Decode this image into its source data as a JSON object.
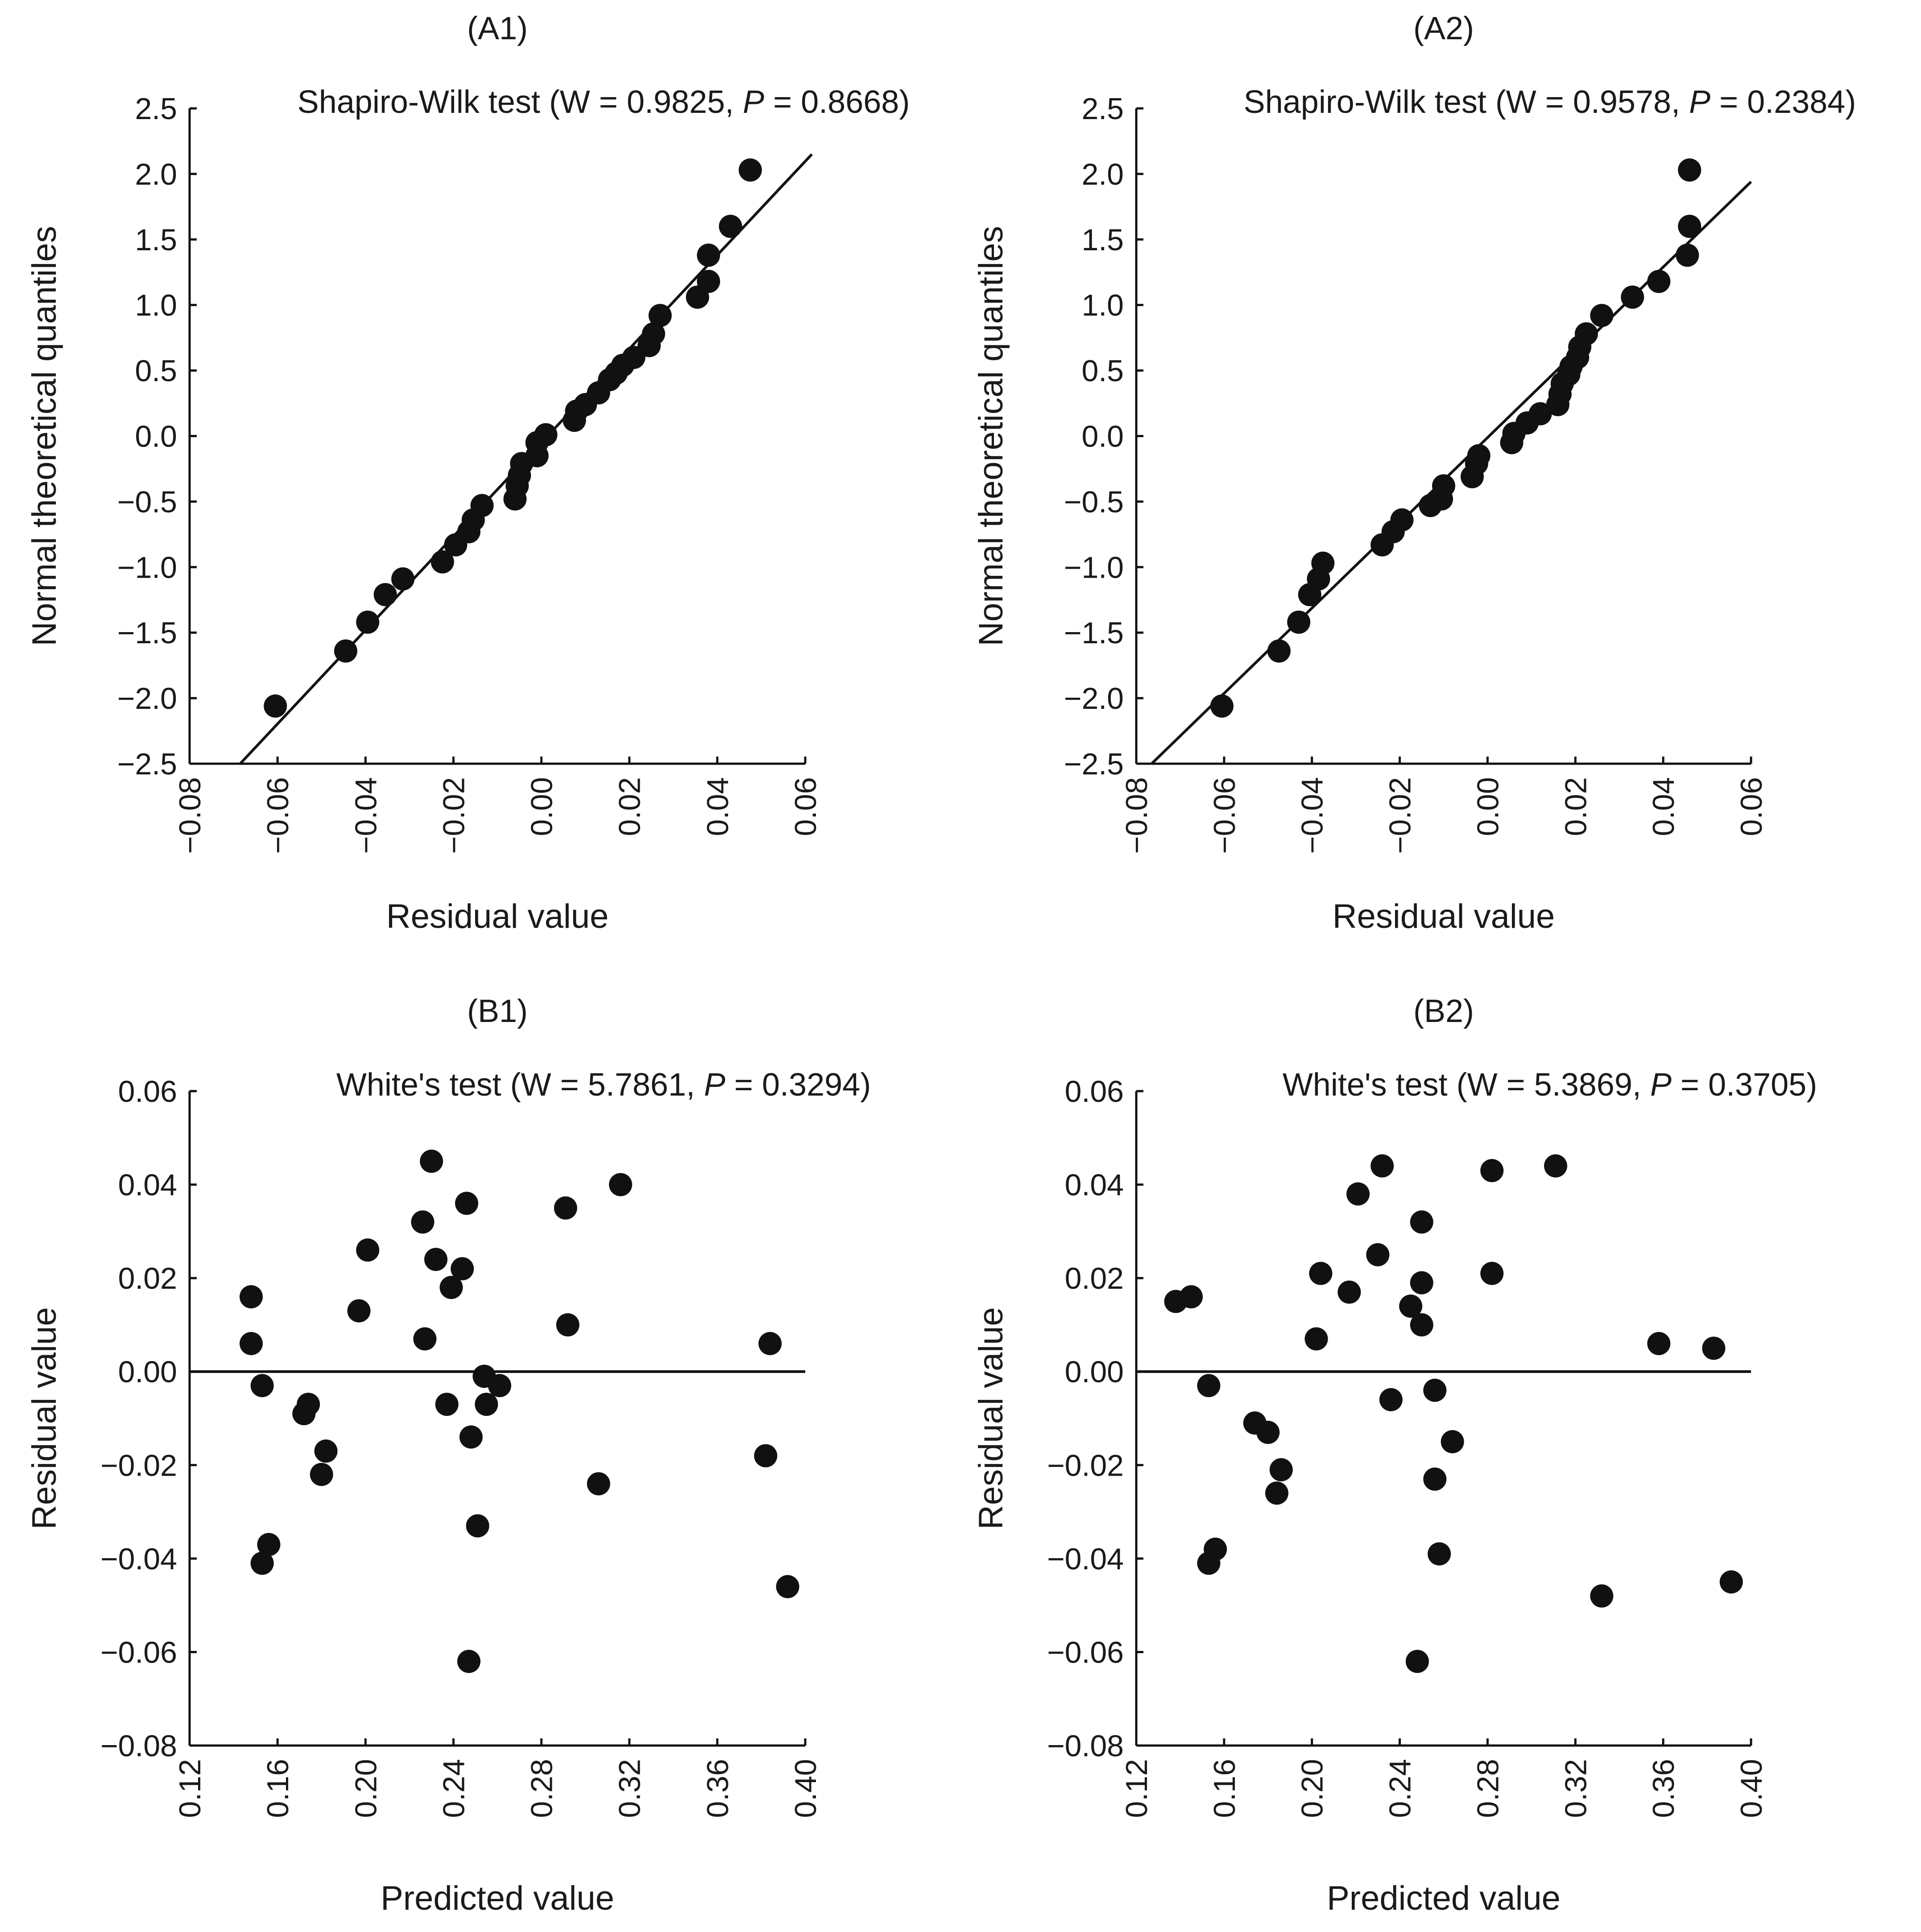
{
  "figure": {
    "background": "#ffffff",
    "ink": "#111111"
  },
  "chart_data": [
    {
      "id": "A1",
      "type": "scatter",
      "panel_label": "(A1)",
      "annotation": {
        "prefix": "Shapiro-Wilk test (W = 0.9825, ",
        "p_symbol": "P",
        "suffix": " = 0.8668)"
      },
      "xlabel": "Residual value",
      "ylabel": "Normal theoretical quantiles",
      "xlim": [
        -0.08,
        0.06
      ],
      "ylim": [
        -2.5,
        2.5
      ],
      "xticks": [
        "−0.08",
        "−0.06",
        "−0.04",
        "−0.02",
        "0.00",
        "0.02",
        "0.04",
        "0.06"
      ],
      "xtick_values": [
        -0.08,
        -0.06,
        -0.04,
        -0.02,
        0.0,
        0.02,
        0.04,
        0.06
      ],
      "yticks": [
        "2.5",
        "2.0",
        "1.5",
        "1.0",
        "0.5",
        "0.0",
        "−0.5",
        "−1.0",
        "−1.5",
        "−2.0",
        "−2.5"
      ],
      "ytick_values": [
        2.5,
        2.0,
        1.5,
        1.0,
        0.5,
        0.0,
        -0.5,
        -1.0,
        -1.5,
        -2.0,
        -2.5
      ],
      "reference_line": {
        "kind": "qq",
        "points": [
          [
            -0.0685,
            -2.5
          ],
          [
            0.0615,
            2.15
          ]
        ]
      },
      "points": [
        [
          -0.0605,
          -2.06
        ],
        [
          -0.0445,
          -1.64
        ],
        [
          -0.0395,
          -1.42
        ],
        [
          -0.0355,
          -1.21
        ],
        [
          -0.0315,
          -1.09
        ],
        [
          -0.0225,
          -0.96
        ],
        [
          -0.0195,
          -0.83
        ],
        [
          -0.0165,
          -0.73
        ],
        [
          -0.0155,
          -0.64
        ],
        [
          -0.0135,
          -0.53
        ],
        [
          -0.006,
          -0.48
        ],
        [
          -0.0055,
          -0.38
        ],
        [
          -0.005,
          -0.3
        ],
        [
          -0.0045,
          -0.21
        ],
        [
          -0.001,
          -0.15
        ],
        [
          -0.001,
          -0.05
        ],
        [
          0.001,
          0.01
        ],
        [
          0.0075,
          0.12
        ],
        [
          0.008,
          0.19
        ],
        [
          0.01,
          0.24
        ],
        [
          0.013,
          0.33
        ],
        [
          0.0155,
          0.43
        ],
        [
          0.017,
          0.48
        ],
        [
          0.0185,
          0.54
        ],
        [
          0.021,
          0.6
        ],
        [
          0.0245,
          0.69
        ],
        [
          0.0255,
          0.78
        ],
        [
          0.027,
          0.92
        ],
        [
          0.0355,
          1.06
        ],
        [
          0.038,
          1.18
        ],
        [
          0.038,
          1.38
        ],
        [
          0.043,
          1.6
        ],
        [
          0.0475,
          2.03
        ]
      ]
    },
    {
      "id": "A2",
      "type": "scatter",
      "panel_label": "(A2)",
      "annotation": {
        "prefix": "Shapiro-Wilk test (W = 0.9578, ",
        "p_symbol": "P",
        "suffix": " = 0.2384)"
      },
      "xlabel": "Residual value",
      "ylabel": "Normal theoretical quantiles",
      "xlim": [
        -0.08,
        0.06
      ],
      "ylim": [
        -2.5,
        2.5
      ],
      "xticks": [
        "−0.08",
        "−0.06",
        "−0.04",
        "−0.02",
        "0.00",
        "0.02",
        "0.04",
        "0.06"
      ],
      "xtick_values": [
        -0.08,
        -0.06,
        -0.04,
        -0.02,
        0.0,
        0.02,
        0.04,
        0.06
      ],
      "yticks": [
        "2.5",
        "2.0",
        "1.5",
        "1.0",
        "0.5",
        "0.0",
        "−0.5",
        "−1.0",
        "−1.5",
        "−2.0",
        "−2.5"
      ],
      "ytick_values": [
        2.5,
        2.0,
        1.5,
        1.0,
        0.5,
        0.0,
        -0.5,
        -1.0,
        -1.5,
        -2.0,
        -2.5
      ],
      "reference_line": {
        "kind": "qq",
        "points": [
          [
            -0.0765,
            -2.5
          ],
          [
            0.06,
            1.94
          ]
        ]
      },
      "points": [
        [
          -0.0605,
          -2.06
        ],
        [
          -0.0475,
          -1.64
        ],
        [
          -0.043,
          -1.42
        ],
        [
          -0.0405,
          -1.21
        ],
        [
          -0.0385,
          -1.09
        ],
        [
          -0.0375,
          -0.97
        ],
        [
          -0.024,
          -0.83
        ],
        [
          -0.0215,
          -0.73
        ],
        [
          -0.0195,
          -0.64
        ],
        [
          -0.013,
          -0.53
        ],
        [
          -0.0105,
          -0.48
        ],
        [
          -0.01,
          -0.38
        ],
        [
          -0.0035,
          -0.31
        ],
        [
          -0.0025,
          -0.21
        ],
        [
          -0.002,
          -0.15
        ],
        [
          0.0055,
          -0.05
        ],
        [
          0.006,
          0.02
        ],
        [
          0.009,
          0.1
        ],
        [
          0.012,
          0.17
        ],
        [
          0.016,
          0.24
        ],
        [
          0.0165,
          0.32
        ],
        [
          0.017,
          0.4
        ],
        [
          0.0185,
          0.47
        ],
        [
          0.019,
          0.53
        ],
        [
          0.0205,
          0.6
        ],
        [
          0.021,
          0.68
        ],
        [
          0.0225,
          0.78
        ],
        [
          0.026,
          0.92
        ],
        [
          0.033,
          1.06
        ],
        [
          0.039,
          1.18
        ],
        [
          0.0455,
          1.38
        ],
        [
          0.046,
          1.6
        ],
        [
          0.046,
          2.03
        ]
      ]
    },
    {
      "id": "B1",
      "type": "scatter",
      "panel_label": "(B1)",
      "annotation": {
        "prefix": "White's test (W = 5.7861, ",
        "p_symbol": "P",
        "suffix": " = 0.3294)"
      },
      "xlabel": "Predicted value",
      "ylabel": "Residual value",
      "xlim": [
        0.12,
        0.4
      ],
      "ylim": [
        -0.08,
        0.06
      ],
      "xticks": [
        "0.12",
        "0.16",
        "0.20",
        "0.24",
        "0.28",
        "0.32",
        "0.36",
        "0.40"
      ],
      "xtick_values": [
        0.12,
        0.16,
        0.2,
        0.24,
        0.28,
        0.32,
        0.36,
        0.4
      ],
      "yticks": [
        "0.06",
        "0.04",
        "0.02",
        "0.00",
        "−0.02",
        "−0.04",
        "−0.06",
        "−0.08"
      ],
      "ytick_values": [
        0.06,
        0.04,
        0.02,
        0.0,
        -0.02,
        -0.04,
        -0.06,
        -0.08
      ],
      "reference_line": {
        "kind": "zero",
        "points": [
          [
            0.12,
            0.0
          ],
          [
            0.4,
            0.0
          ]
        ]
      },
      "points": [
        [
          0.148,
          0.016
        ],
        [
          0.148,
          0.006
        ],
        [
          0.153,
          -0.003
        ],
        [
          0.153,
          -0.041
        ],
        [
          0.156,
          -0.037
        ],
        [
          0.172,
          -0.009
        ],
        [
          0.174,
          -0.007
        ],
        [
          0.18,
          -0.022
        ],
        [
          0.182,
          -0.017
        ],
        [
          0.197,
          0.013
        ],
        [
          0.201,
          0.026
        ],
        [
          0.226,
          0.032
        ],
        [
          0.227,
          0.007
        ],
        [
          0.23,
          0.045
        ],
        [
          0.232,
          0.024
        ],
        [
          0.237,
          -0.007
        ],
        [
          0.239,
          0.018
        ],
        [
          0.244,
          0.022
        ],
        [
          0.246,
          0.036
        ],
        [
          0.247,
          -0.062
        ],
        [
          0.248,
          -0.014
        ],
        [
          0.251,
          -0.033
        ],
        [
          0.254,
          -0.001
        ],
        [
          0.255,
          -0.007
        ],
        [
          0.261,
          -0.003
        ],
        [
          0.291,
          0.035
        ],
        [
          0.292,
          0.01
        ],
        [
          0.306,
          -0.024
        ],
        [
          0.316,
          0.04
        ],
        [
          0.382,
          -0.018
        ],
        [
          0.384,
          0.006
        ],
        [
          0.392,
          -0.046
        ]
      ]
    },
    {
      "id": "B2",
      "type": "scatter",
      "panel_label": "(B2)",
      "annotation": {
        "prefix": "White's test (W = 5.3869, ",
        "p_symbol": "P",
        "suffix": " = 0.3705)"
      },
      "xlabel": "Predicted value",
      "ylabel": "Residual value",
      "xlim": [
        0.12,
        0.4
      ],
      "ylim": [
        -0.08,
        0.06
      ],
      "xticks": [
        "0.12",
        "0.16",
        "0.20",
        "0.24",
        "0.28",
        "0.32",
        "0.36",
        "0.40"
      ],
      "xtick_values": [
        0.12,
        0.16,
        0.2,
        0.24,
        0.28,
        0.32,
        0.36,
        0.4
      ],
      "yticks": [
        "0.06",
        "0.04",
        "0.02",
        "0.00",
        "−0.02",
        "−0.04",
        "−0.06",
        "−0.08"
      ],
      "ytick_values": [
        0.06,
        0.04,
        0.02,
        0.0,
        -0.02,
        -0.04,
        -0.06,
        -0.08
      ],
      "reference_line": {
        "kind": "zero",
        "points": [
          [
            0.12,
            0.0
          ],
          [
            0.4,
            0.0
          ]
        ]
      },
      "points": [
        [
          0.138,
          0.015
        ],
        [
          0.145,
          0.016
        ],
        [
          0.153,
          -0.003
        ],
        [
          0.153,
          -0.041
        ],
        [
          0.156,
          -0.038
        ],
        [
          0.174,
          -0.011
        ],
        [
          0.18,
          -0.013
        ],
        [
          0.184,
          -0.026
        ],
        [
          0.186,
          -0.021
        ],
        [
          0.202,
          0.007
        ],
        [
          0.204,
          0.021
        ],
        [
          0.217,
          0.017
        ],
        [
          0.221,
          0.038
        ],
        [
          0.23,
          0.025
        ],
        [
          0.232,
          0.044
        ],
        [
          0.236,
          -0.006
        ],
        [
          0.245,
          0.014
        ],
        [
          0.248,
          -0.062
        ],
        [
          0.25,
          0.032
        ],
        [
          0.25,
          0.019
        ],
        [
          0.25,
          0.01
        ],
        [
          0.256,
          -0.004
        ],
        [
          0.256,
          -0.023
        ],
        [
          0.258,
          -0.039
        ],
        [
          0.264,
          -0.015
        ],
        [
          0.282,
          0.043
        ],
        [
          0.282,
          0.021
        ],
        [
          0.311,
          0.044
        ],
        [
          0.332,
          -0.048
        ],
        [
          0.358,
          0.006
        ],
        [
          0.383,
          0.005
        ],
        [
          0.391,
          -0.045
        ]
      ]
    }
  ]
}
